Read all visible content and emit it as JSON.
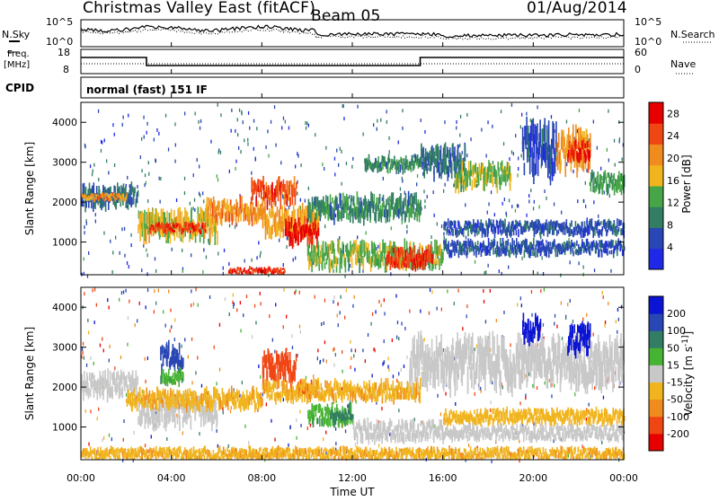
{
  "header": {
    "station": "Christmas Valley East (fitACF)",
    "beam": "Beam 05",
    "date": "01/Aug/2014"
  },
  "labels": {
    "nsky": "N.Sky",
    "nsearch": "N.Search",
    "freq_line1": "Freq.",
    "freq_line2": "[MHz]",
    "nave": "Nave",
    "cpid": "CPID",
    "cpid_value": "normal (fast) 151 IF"
  },
  "noise_panel": {
    "left_ticks": [
      "10^5",
      "10^0"
    ],
    "right_ticks": [
      "10^5",
      "10^0"
    ]
  },
  "freq_panel": {
    "left_ticks": [
      "18",
      "8"
    ],
    "right_ticks": [
      "60",
      "0"
    ]
  },
  "time_axis": {
    "label": "Time UT",
    "ticks": [
      "00:00",
      "04:00",
      "08:00",
      "12:00",
      "16:00",
      "20:00",
      "00:00"
    ]
  },
  "colors": {
    "power": [
      "#1e28e6",
      "#2846b4",
      "#327d64",
      "#46a546",
      "#f0b41e",
      "#f08c1e",
      "#f04614",
      "#e60000"
    ],
    "velocity": [
      "#e60000",
      "#f04614",
      "#f08c1e",
      "#f0b41e",
      "#c8c8c8",
      "#46b432",
      "#327d64",
      "#2846b4",
      "#0a14d2"
    ]
  },
  "chart_data": [
    {
      "type": "heatmap",
      "title": "",
      "xlabel": "",
      "ylabel": "Slant Range [km]",
      "xlim": [
        0,
        24
      ],
      "ylim": [
        180,
        4500
      ],
      "yticks": [
        1000,
        2000,
        3000,
        4000
      ],
      "colorbar_label": "Power [dB]",
      "colorbar_ticks": [
        4,
        8,
        12,
        16,
        20,
        24,
        28
      ],
      "colorbar_range": [
        0,
        30
      ],
      "bands": [
        {
          "t": [
            0,
            2.5
          ],
          "r": [
            1900,
            2350
          ],
          "value": 8
        },
        {
          "t": [
            0,
            2
          ],
          "r": [
            2050,
            2200
          ],
          "value": 20
        },
        {
          "t": [
            2.5,
            6
          ],
          "r": [
            1100,
            1700
          ],
          "value": 16
        },
        {
          "t": [
            3,
            5.5
          ],
          "r": [
            1250,
            1450
          ],
          "value": 26
        },
        {
          "t": [
            5.5,
            8
          ],
          "r": [
            1550,
            2000
          ],
          "value": 20
        },
        {
          "t": [
            8,
            10.5
          ],
          "r": [
            1200,
            1800
          ],
          "value": 18
        },
        {
          "t": [
            9,
            10.5
          ],
          "r": [
            1000,
            1500
          ],
          "value": 28
        },
        {
          "t": [
            6.5,
            9
          ],
          "r": [
            200,
            350
          ],
          "value": 26
        },
        {
          "t": [
            7.5,
            9.5
          ],
          "r": [
            2000,
            2500
          ],
          "value": 24
        },
        {
          "t": [
            10,
            15
          ],
          "r": [
            1600,
            2100
          ],
          "value": 10
        },
        {
          "t": [
            10,
            16
          ],
          "r": [
            400,
            900
          ],
          "value": 14
        },
        {
          "t": [
            13.5,
            15.5
          ],
          "r": [
            400,
            800
          ],
          "value": 26
        },
        {
          "t": [
            12.5,
            15
          ],
          "r": [
            2800,
            3100
          ],
          "value": 10
        },
        {
          "t": [
            15,
            17
          ],
          "r": [
            2700,
            3300
          ],
          "value": 8
        },
        {
          "t": [
            16.5,
            19
          ],
          "r": [
            2400,
            2900
          ],
          "value": 14
        },
        {
          "t": [
            19.5,
            21
          ],
          "r": [
            2800,
            3800
          ],
          "value": 6
        },
        {
          "t": [
            21,
            22.5
          ],
          "r": [
            2900,
            3700
          ],
          "value": 20
        },
        {
          "t": [
            21.5,
            22.5
          ],
          "r": [
            3100,
            3500
          ],
          "value": 26
        },
        {
          "t": [
            22.5,
            24
          ],
          "r": [
            2300,
            2700
          ],
          "value": 12
        },
        {
          "t": [
            16,
            24
          ],
          "r": [
            1200,
            1500
          ],
          "value": 6
        },
        {
          "t": [
            16,
            24
          ],
          "r": [
            700,
            1000
          ],
          "value": 6
        }
      ]
    },
    {
      "type": "heatmap",
      "title": "",
      "xlabel": "Time UT",
      "ylabel": "Slant Range [km]",
      "xlim": [
        0,
        24
      ],
      "ylim": [
        180,
        4500
      ],
      "yticks": [
        1000,
        2000,
        3000,
        4000
      ],
      "colorbar_label": "Velocity [m s^-1]",
      "colorbar_ticks": [
        -200,
        -100,
        -50,
        -15,
        15,
        50,
        100,
        200
      ],
      "colorbar_range": [
        -250,
        250
      ],
      "bands": [
        {
          "t": [
            0,
            2.5
          ],
          "r": [
            1800,
            2300
          ],
          "value": 0
        },
        {
          "t": [
            2.5,
            6
          ],
          "r": [
            1100,
            1700
          ],
          "value": 0
        },
        {
          "t": [
            2,
            8
          ],
          "r": [
            1500,
            1900
          ],
          "value": -40
        },
        {
          "t": [
            3.5,
            4.5
          ],
          "r": [
            2500,
            3000
          ],
          "value": 180
        },
        {
          "t": [
            3.5,
            4.5
          ],
          "r": [
            2100,
            2400
          ],
          "value": 40
        },
        {
          "t": [
            8,
            9.5
          ],
          "r": [
            2200,
            2800
          ],
          "value": -180
        },
        {
          "t": [
            9.5,
            10.5
          ],
          "r": [
            1800,
            2100
          ],
          "value": -150
        },
        {
          "t": [
            10,
            12
          ],
          "r": [
            1100,
            1500
          ],
          "value": 40
        },
        {
          "t": [
            11,
            12
          ],
          "r": [
            1200,
            1400
          ],
          "value": 80
        },
        {
          "t": [
            8,
            15
          ],
          "r": [
            1700,
            2100
          ],
          "value": -40
        },
        {
          "t": [
            6.5,
            9
          ],
          "r": [
            250,
            350
          ],
          "value": -50
        },
        {
          "t": [
            0,
            24
          ],
          "r": [
            200,
            450
          ],
          "value": -40
        },
        {
          "t": [
            12,
            16
          ],
          "r": [
            700,
            1100
          ],
          "value": 0
        },
        {
          "t": [
            16,
            24
          ],
          "r": [
            1100,
            1400
          ],
          "value": -30
        },
        {
          "t": [
            16,
            24
          ],
          "r": [
            700,
            1000
          ],
          "value": 0
        },
        {
          "t": [
            14.5,
            24
          ],
          "r": [
            2100,
            3100
          ],
          "value": 0
        },
        {
          "t": [
            19.5,
            20.3
          ],
          "r": [
            3200,
            3700
          ],
          "value": 220
        },
        {
          "t": [
            21.5,
            22.5
          ],
          "r": [
            2900,
            3500
          ],
          "value": 230
        }
      ]
    }
  ]
}
